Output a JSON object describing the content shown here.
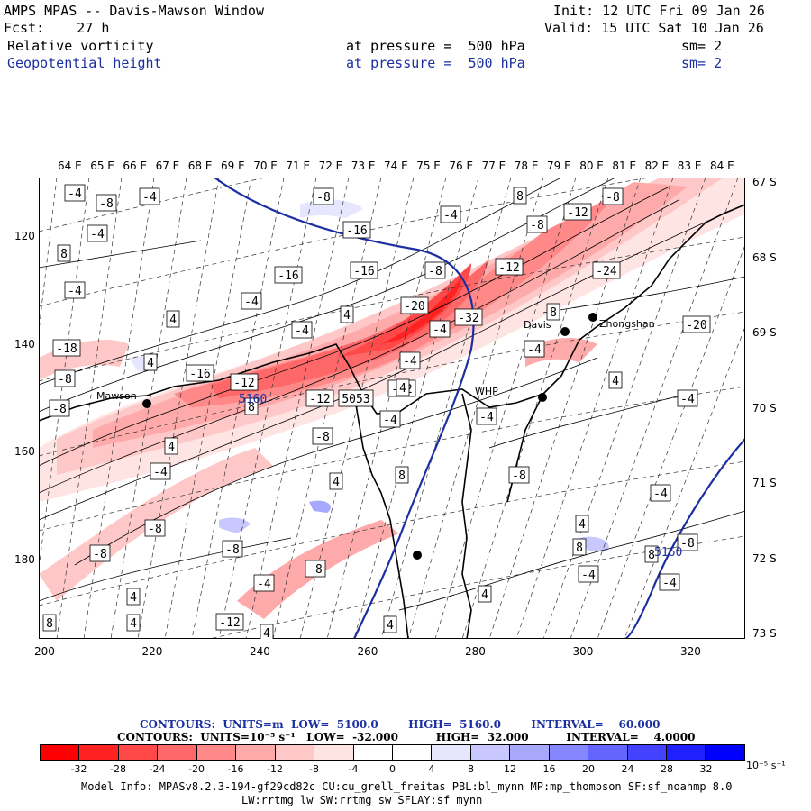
{
  "header": {
    "title": "AMPS MPAS -- Davis-Mawson Window",
    "init": "Init: 12 UTC Fri 09 Jan 26",
    "fcst": "Fcst:    27 h",
    "valid": "Valid: 15 UTC Sat 10 Jan 26",
    "field1": {
      "name": "Relative vorticity",
      "pressure": "at pressure =  500 hPa",
      "sm": "sm= 2"
    },
    "field2": {
      "name": "Geopotential height",
      "pressure": "at pressure =  500 hPa",
      "sm": "sm= 2"
    }
  },
  "axes": {
    "top_lon": [
      "64 E",
      "65 E",
      "66 E",
      "67 E",
      "68 E",
      "69 E",
      "70 E",
      "71 E",
      "72 E",
      "73 E",
      "74 E",
      "75 E",
      "76 E",
      "77 E",
      "78 E",
      "79 E",
      "80 E",
      "81 E",
      "82 E",
      "83 E",
      "84 E"
    ],
    "right_lat": [
      "67 S",
      "68 S",
      "69 S",
      "70 S",
      "71 S",
      "72 S",
      "73 S"
    ],
    "left_y": [
      "120",
      "140",
      "160",
      "180"
    ],
    "bottom_x": [
      "200",
      "220",
      "240",
      "260",
      "280",
      "300",
      "320"
    ]
  },
  "stations": [
    {
      "name": "Mawson"
    },
    {
      "name": "Davis"
    },
    {
      "name": "Zhongshan"
    },
    {
      "name": "WHP"
    }
  ],
  "map_labels": {
    "height_contour": "5160",
    "height_contour_2": "5160",
    "vort_values": [
      "-4",
      "-8",
      "-4",
      "-4",
      "8",
      "-8",
      "-4",
      "8",
      "-16",
      "-12",
      "-8",
      "-8",
      "-16",
      "-8",
      "-12",
      "-24",
      "-16",
      "-4",
      "-4",
      "4",
      "4",
      "-4",
      "-20",
      "-32",
      "-18",
      "4",
      "8",
      "-4",
      "-20",
      "-8",
      "-4",
      "-16",
      "-12",
      "-4",
      "-12",
      "8",
      "5053",
      "-12",
      "-8",
      "4",
      "4",
      "-4",
      "-8",
      "-8",
      "-4",
      "4",
      "-4",
      "8",
      "-4",
      "8",
      "-8",
      "4",
      "-4",
      "-4",
      "8",
      "4",
      "-4",
      "-8",
      "-8",
      "-8",
      "-4",
      "-12",
      "-8",
      "4",
      "4",
      "8",
      "4",
      "4",
      "4",
      "-4"
    ]
  },
  "legend": {
    "contours1": "CONTOURS:  UNITS=m  LOW=  5100.0        HIGH=  5160.0        INTERVAL=    60.000",
    "contours2": "CONTOURS:  UNITS=10⁻⁵ s⁻¹   LOW=  -32.000          HIGH=  32.000          INTERVAL=    4.0000",
    "ticks": [
      "-32",
      "-28",
      "-24",
      "-20",
      "-16",
      "-12",
      "-8",
      "-4",
      "0",
      "4",
      "8",
      "12",
      "16",
      "20",
      "24",
      "28",
      "32"
    ],
    "unit": "10⁻⁵ s⁻¹",
    "colors": [
      "#ff0000",
      "#ff2222",
      "#ff4848",
      "#ff6868",
      "#ff8888",
      "#ffaaaa",
      "#ffc8c8",
      "#ffe4e4",
      "#ffffff",
      "#ffffff",
      "#e6e6ff",
      "#c8c8ff",
      "#a8a8ff",
      "#8686ff",
      "#6464ff",
      "#4242ff",
      "#2020ff",
      "#0000ff"
    ]
  },
  "footer": {
    "line1": "Model Info: MPASv8.2.3-194-gf29cd82c CU:cu_grell_freitas PBL:bl_mynn MP:mp_thompson SF:sf_noahmp 8.0",
    "line2": "LW:rrtmg_lw SW:rrtmg_sw SFLAY:sf_mynn"
  }
}
